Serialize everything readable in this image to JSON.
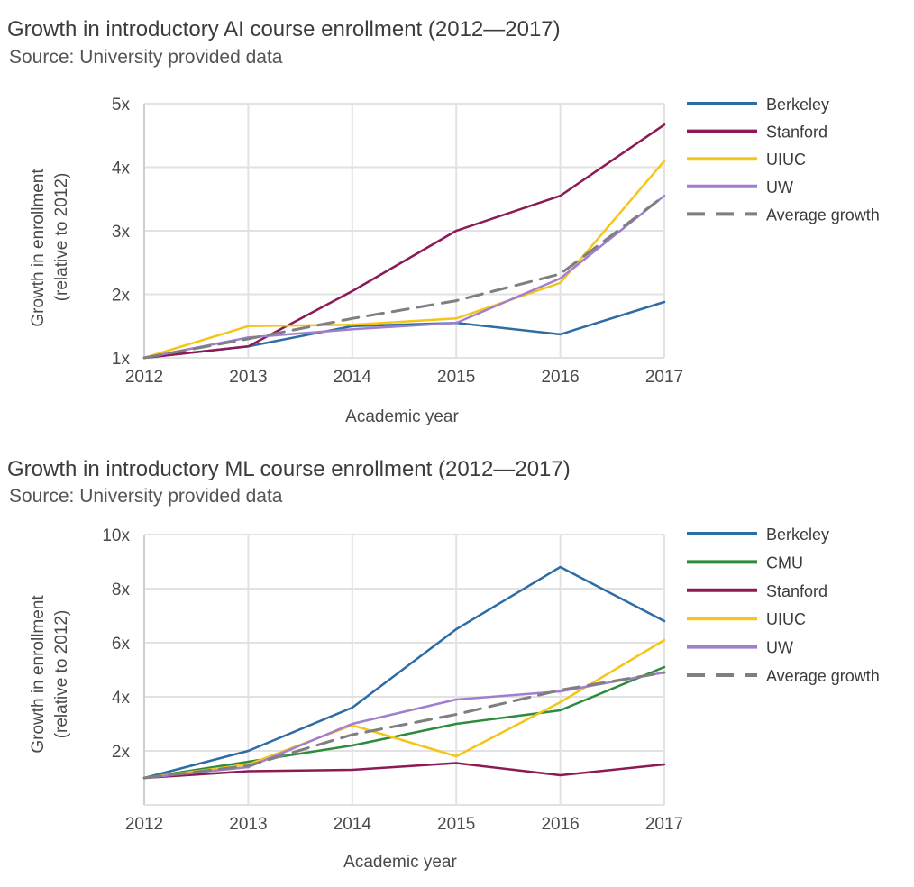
{
  "chart_data": [
    {
      "type": "line",
      "title": "Growth in introductory AI course enrollment (2012—2017)",
      "subtitle": "Source: University provided data",
      "xlabel": "Academic year",
      "ylabel": [
        "Growth in enrollment",
        "(relative to 2012)"
      ],
      "x": [
        2012,
        2013,
        2014,
        2015,
        2016,
        2017
      ],
      "ylim": [
        1,
        5
      ],
      "yticks": [
        1,
        2,
        3,
        4,
        5
      ],
      "ytick_labels": [
        "1x",
        "2x",
        "3x",
        "4x",
        "5x"
      ],
      "grid": true,
      "legend_position": "right",
      "series": [
        {
          "name": "Berkeley",
          "color": "#2e6ca4",
          "dash": false,
          "values": [
            1.0,
            1.18,
            1.5,
            1.55,
            1.37,
            1.88
          ]
        },
        {
          "name": "Stanford",
          "color": "#8b1a55",
          "dash": false,
          "values": [
            1.0,
            1.18,
            2.05,
            3.0,
            3.55,
            4.67
          ]
        },
        {
          "name": "UIUC",
          "color": "#f5c518",
          "dash": false,
          "values": [
            1.0,
            1.5,
            1.52,
            1.62,
            2.18,
            4.1
          ]
        },
        {
          "name": "UW",
          "color": "#a07fcf",
          "dash": false,
          "values": [
            1.0,
            1.32,
            1.45,
            1.55,
            2.25,
            3.55
          ]
        },
        {
          "name": "Average growth",
          "color": "#7f7f7f",
          "dash": true,
          "values": [
            1.0,
            1.3,
            1.62,
            1.9,
            2.32,
            3.55
          ]
        }
      ]
    },
    {
      "type": "line",
      "title": "Growth in introductory ML course enrollment (2012—2017)",
      "subtitle": "Source: University provided data",
      "xlabel": "Academic year",
      "ylabel": [
        "Growth in enrollment",
        "(relative to 2012)"
      ],
      "x": [
        2012,
        2013,
        2014,
        2015,
        2016,
        2017
      ],
      "ylim": [
        0,
        10
      ],
      "yticks": [
        2,
        4,
        6,
        8,
        10
      ],
      "ytick_labels": [
        "2x",
        "4x",
        "6x",
        "8x",
        "10x"
      ],
      "grid": true,
      "legend_position": "right",
      "series": [
        {
          "name": "Berkeley",
          "color": "#2e6ca4",
          "dash": false,
          "values": [
            1.0,
            2.0,
            3.6,
            6.5,
            8.8,
            6.8
          ]
        },
        {
          "name": "CMU",
          "color": "#2e8b3c",
          "dash": false,
          "values": [
            1.0,
            1.6,
            2.2,
            3.0,
            3.5,
            5.1
          ]
        },
        {
          "name": "Stanford",
          "color": "#8b1a55",
          "dash": false,
          "values": [
            1.0,
            1.25,
            1.3,
            1.55,
            1.1,
            1.5
          ]
        },
        {
          "name": "UIUC",
          "color": "#f5c518",
          "dash": false,
          "values": [
            1.0,
            1.5,
            2.95,
            1.8,
            3.8,
            6.1
          ]
        },
        {
          "name": "UW",
          "color": "#a07fcf",
          "dash": false,
          "values": [
            1.0,
            1.4,
            3.0,
            3.9,
            4.2,
            4.9
          ]
        },
        {
          "name": "Average growth",
          "color": "#7f7f7f",
          "dash": true,
          "values": [
            1.0,
            1.45,
            2.6,
            3.35,
            4.25,
            4.9
          ]
        }
      ]
    }
  ]
}
